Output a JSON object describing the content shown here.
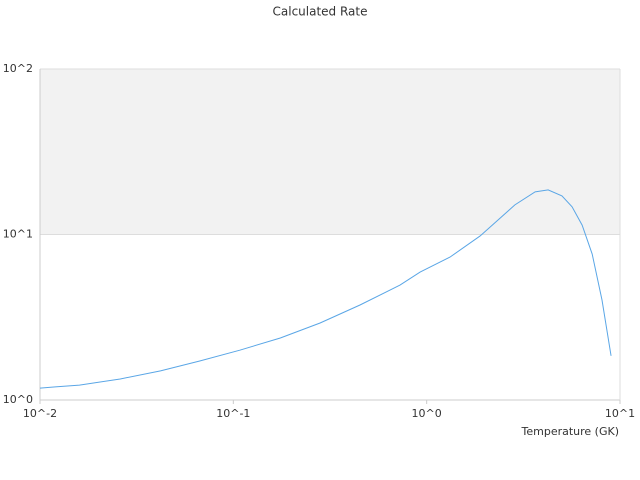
{
  "chart_data": {
    "type": "line",
    "title": "Calculated Rate",
    "x_label": "Temperature (GK)",
    "x": [
      0.01,
      0.012,
      0.016,
      0.026,
      0.042,
      0.067,
      0.108,
      0.175,
      0.281,
      0.452,
      0.728,
      0.925,
      1.32,
      1.89,
      2.86,
      3.64,
      4.25,
      5.01,
      5.65,
      6.37,
      7.18,
      8.07,
      8.99
    ],
    "series": [
      {
        "color": "#5aa6e6",
        "values": [
          1.18,
          1.2,
          1.23,
          1.34,
          1.5,
          1.72,
          2.0,
          2.37,
          2.92,
          3.75,
          4.95,
          5.93,
          7.3,
          9.8,
          15.1,
          18.1,
          18.6,
          17.1,
          14.7,
          11.4,
          7.62,
          4.02,
          1.85
        ]
      }
    ],
    "xlim": [
      0.01,
      10
    ],
    "ylim": [
      1,
      100
    ],
    "xticks": [
      {
        "value": 0.01,
        "label": "10^-2"
      },
      {
        "value": 0.1,
        "label": "10^-1"
      },
      {
        "value": 1,
        "label": "10^0"
      },
      {
        "value": 10,
        "label": "10^1"
      }
    ],
    "yticks": [
      {
        "value": 1,
        "label": "10^0"
      },
      {
        "value": 10,
        "label": "10^1"
      },
      {
        "value": 100,
        "label": "10^2"
      }
    ],
    "x_log": true,
    "y_log": true,
    "grid": true,
    "band_color": "#f2f2f2"
  }
}
